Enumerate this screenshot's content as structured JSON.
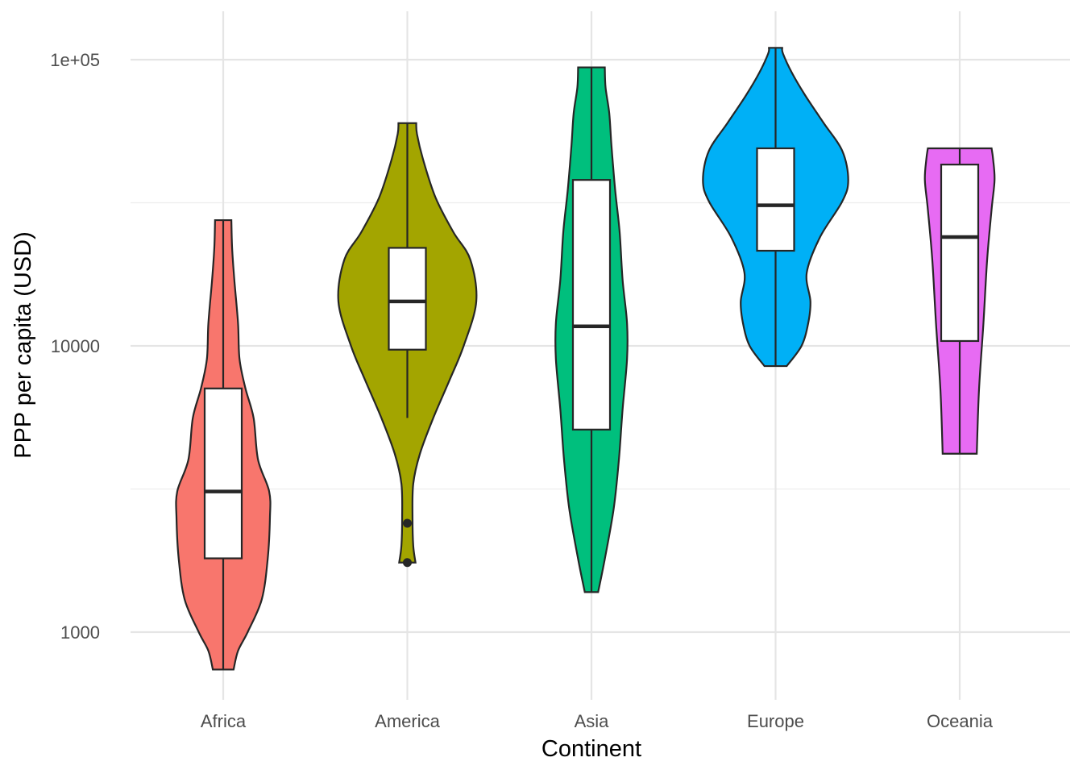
{
  "chart_data": {
    "type": "violin",
    "title": "",
    "xlabel": "Continent",
    "ylabel": "PPP per capita (USD)",
    "y_scale": "log10",
    "ylim": [
      620,
      140000
    ],
    "y_ticks": [
      1000,
      10000,
      100000
    ],
    "y_tick_labels": [
      "1000",
      "10000",
      "1e+05"
    ],
    "grid": true,
    "legend": "none",
    "categories": [
      "Africa",
      "America",
      "Asia",
      "Europe",
      "Oceania"
    ],
    "series": [
      {
        "category": "Africa",
        "color": "#F8766D",
        "min": 740,
        "q1": 1810,
        "median": 3100,
        "q3": 7100,
        "max": 27500,
        "outliers": [],
        "density": [
          [
            740,
            0.14
          ],
          [
            860,
            0.2
          ],
          [
            1000,
            0.33
          ],
          [
            1300,
            0.52
          ],
          [
            1800,
            0.6
          ],
          [
            2500,
            0.63
          ],
          [
            3100,
            0.62
          ],
          [
            4000,
            0.47
          ],
          [
            5600,
            0.41
          ],
          [
            7100,
            0.3
          ],
          [
            9000,
            0.22
          ],
          [
            12000,
            0.2
          ],
          [
            17000,
            0.15
          ],
          [
            22000,
            0.12
          ],
          [
            27500,
            0.11
          ]
        ]
      },
      {
        "category": "America",
        "color": "#A3A500",
        "min": 5600,
        "q1": 9700,
        "median": 14300,
        "q3": 22000,
        "max": 60000,
        "outliers": [
          2400,
          1750
        ],
        "density": [
          [
            1750,
            0.11
          ],
          [
            2000,
            0.08
          ],
          [
            2500,
            0.07
          ],
          [
            3300,
            0.08
          ],
          [
            4200,
            0.17
          ],
          [
            5600,
            0.35
          ],
          [
            7600,
            0.57
          ],
          [
            10000,
            0.76
          ],
          [
            14300,
            0.93
          ],
          [
            20000,
            0.85
          ],
          [
            25000,
            0.62
          ],
          [
            33000,
            0.38
          ],
          [
            45000,
            0.21
          ],
          [
            55000,
            0.13
          ],
          [
            60000,
            0.12
          ]
        ]
      },
      {
        "category": "Asia",
        "color": "#00BF7D",
        "min": 1380,
        "q1": 5100,
        "median": 11700,
        "q3": 38000,
        "max": 94000,
        "outliers": [],
        "density": [
          [
            1380,
            0.09
          ],
          [
            1800,
            0.18
          ],
          [
            2700,
            0.3
          ],
          [
            4000,
            0.37
          ],
          [
            6000,
            0.42
          ],
          [
            9000,
            0.48
          ],
          [
            12000,
            0.48
          ],
          [
            17000,
            0.42
          ],
          [
            25000,
            0.38
          ],
          [
            35000,
            0.32
          ],
          [
            50000,
            0.27
          ],
          [
            65000,
            0.24
          ],
          [
            80000,
            0.19
          ],
          [
            94000,
            0.18
          ]
        ]
      },
      {
        "category": "Europe",
        "color": "#00B0F6",
        "min": 8500,
        "q1": 21500,
        "median": 31000,
        "q3": 49000,
        "max": 110000,
        "outliers": [],
        "density": [
          [
            8500,
            0.15
          ],
          [
            10000,
            0.35
          ],
          [
            12000,
            0.44
          ],
          [
            14300,
            0.47
          ],
          [
            18000,
            0.42
          ],
          [
            24000,
            0.6
          ],
          [
            32000,
            0.9
          ],
          [
            38000,
            0.98
          ],
          [
            48000,
            0.9
          ],
          [
            60000,
            0.65
          ],
          [
            75000,
            0.4
          ],
          [
            90000,
            0.22
          ],
          [
            105000,
            0.1
          ],
          [
            110000,
            0.09
          ]
        ]
      },
      {
        "category": "Oceania",
        "color": "#E76BF3",
        "min": 4200,
        "q1": 10400,
        "median": 24000,
        "q3": 43000,
        "max": 49000,
        "outliers": [],
        "density": [
          [
            4200,
            0.23
          ],
          [
            7000,
            0.26
          ],
          [
            12000,
            0.32
          ],
          [
            20000,
            0.37
          ],
          [
            30000,
            0.43
          ],
          [
            38000,
            0.47
          ],
          [
            45000,
            0.45
          ],
          [
            49000,
            0.43
          ]
        ]
      }
    ]
  }
}
